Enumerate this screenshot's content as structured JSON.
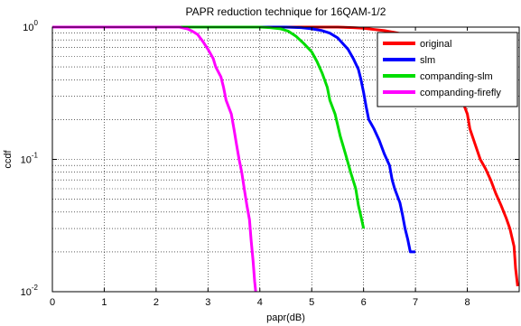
{
  "chart_data": {
    "type": "line",
    "title": "PAPR reduction technique for 16QAM-1/2",
    "xlabel": "papr(dB)",
    "ylabel": "ccdf",
    "xlim": [
      0,
      9
    ],
    "ylim": [
      0.01,
      1
    ],
    "yscale": "log",
    "grid": true,
    "legend_position": "top-right",
    "x_ticks": [
      0,
      1,
      2,
      3,
      4,
      5,
      6,
      7,
      8
    ],
    "x_tick_labels": [
      "0",
      "1",
      "2",
      "3",
      "4",
      "5",
      "6",
      "7",
      "8"
    ],
    "y_ticks": [
      0.01,
      0.1,
      1
    ],
    "y_tick_labels": [
      {
        "base": "10",
        "exp": "-2"
      },
      {
        "base": "10",
        "exp": "-1"
      },
      {
        "base": "10",
        "exp": "0"
      }
    ],
    "series": [
      {
        "name": "original",
        "color": "#ff0000",
        "points": [
          [
            0,
            1
          ],
          [
            5.5,
            1
          ],
          [
            5.8,
            0.99
          ],
          [
            6.0,
            0.98
          ],
          [
            6.2,
            0.96
          ],
          [
            6.4,
            0.94
          ],
          [
            6.6,
            0.91
          ],
          [
            6.8,
            0.88
          ],
          [
            6.95,
            0.84
          ],
          [
            7.1,
            0.78
          ],
          [
            7.2,
            0.7
          ],
          [
            7.35,
            0.62
          ],
          [
            7.5,
            0.55
          ],
          [
            7.6,
            0.48
          ],
          [
            7.7,
            0.4
          ],
          [
            7.8,
            0.34
          ],
          [
            7.9,
            0.28
          ],
          [
            8.0,
            0.22
          ],
          [
            8.05,
            0.17
          ],
          [
            8.15,
            0.13
          ],
          [
            8.25,
            0.1
          ],
          [
            8.35,
            0.085
          ],
          [
            8.45,
            0.07
          ],
          [
            8.55,
            0.055
          ],
          [
            8.65,
            0.045
          ],
          [
            8.75,
            0.036
          ],
          [
            8.82,
            0.03
          ],
          [
            8.9,
            0.022
          ],
          [
            8.93,
            0.015
          ],
          [
            8.97,
            0.011
          ]
        ]
      },
      {
        "name": "slm",
        "color": "#0000ff",
        "points": [
          [
            0,
            1
          ],
          [
            4.5,
            1
          ],
          [
            4.8,
            0.99
          ],
          [
            5.0,
            0.97
          ],
          [
            5.2,
            0.94
          ],
          [
            5.35,
            0.9
          ],
          [
            5.5,
            0.83
          ],
          [
            5.6,
            0.75
          ],
          [
            5.7,
            0.68
          ],
          [
            5.8,
            0.58
          ],
          [
            5.9,
            0.48
          ],
          [
            5.95,
            0.4
          ],
          [
            6.0,
            0.32
          ],
          [
            6.05,
            0.25
          ],
          [
            6.1,
            0.2
          ],
          [
            6.2,
            0.17
          ],
          [
            6.3,
            0.14
          ],
          [
            6.4,
            0.11
          ],
          [
            6.5,
            0.09
          ],
          [
            6.55,
            0.07
          ],
          [
            6.6,
            0.06
          ],
          [
            6.7,
            0.047
          ],
          [
            6.75,
            0.038
          ],
          [
            6.8,
            0.03
          ],
          [
            6.85,
            0.025
          ],
          [
            6.9,
            0.02
          ],
          [
            7.0,
            0.02
          ]
        ]
      },
      {
        "name": "companding-slm",
        "color": "#00dd00",
        "points": [
          [
            0,
            1
          ],
          [
            4.0,
            1
          ],
          [
            4.2,
            0.99
          ],
          [
            4.4,
            0.97
          ],
          [
            4.55,
            0.93
          ],
          [
            4.7,
            0.85
          ],
          [
            4.85,
            0.75
          ],
          [
            5.0,
            0.65
          ],
          [
            5.1,
            0.55
          ],
          [
            5.2,
            0.45
          ],
          [
            5.3,
            0.35
          ],
          [
            5.35,
            0.28
          ],
          [
            5.45,
            0.22
          ],
          [
            5.55,
            0.15
          ],
          [
            5.65,
            0.11
          ],
          [
            5.75,
            0.08
          ],
          [
            5.85,
            0.06
          ],
          [
            5.9,
            0.045
          ],
          [
            5.95,
            0.037
          ],
          [
            6.0,
            0.03
          ]
        ]
      },
      {
        "name": "companding-firefly",
        "color": "#ff00ff",
        "points": [
          [
            0,
            1
          ],
          [
            2.45,
            1
          ],
          [
            2.6,
            0.97
          ],
          [
            2.7,
            0.93
          ],
          [
            2.8,
            0.88
          ],
          [
            2.9,
            0.78
          ],
          [
            3.0,
            0.68
          ],
          [
            3.1,
            0.58
          ],
          [
            3.15,
            0.5
          ],
          [
            3.25,
            0.42
          ],
          [
            3.3,
            0.35
          ],
          [
            3.35,
            0.28
          ],
          [
            3.45,
            0.22
          ],
          [
            3.5,
            0.17
          ],
          [
            3.55,
            0.13
          ],
          [
            3.6,
            0.1
          ],
          [
            3.65,
            0.08
          ],
          [
            3.7,
            0.06
          ],
          [
            3.75,
            0.045
          ],
          [
            3.8,
            0.035
          ],
          [
            3.83,
            0.025
          ],
          [
            3.87,
            0.017
          ],
          [
            3.9,
            0.012
          ],
          [
            3.92,
            0.01
          ]
        ]
      }
    ]
  }
}
